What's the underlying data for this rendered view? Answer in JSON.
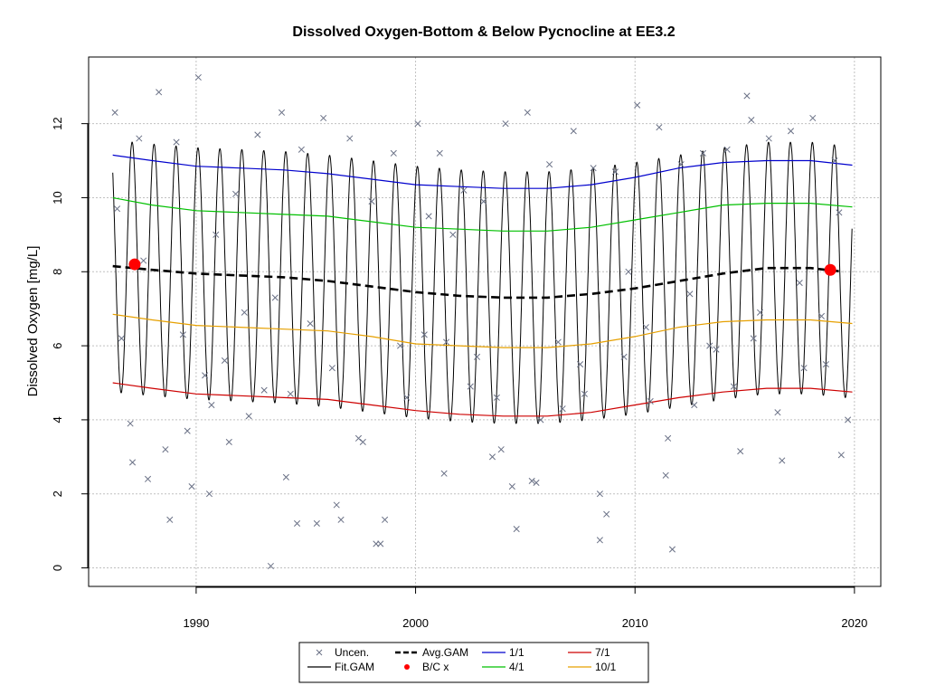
{
  "chart_data": {
    "type": "scatter",
    "title": "Dissolved Oxygen-Bottom & Below Pycnocline at EE3.2",
    "xlabel": "",
    "ylabel": "Dissolved Oxygen [mg/L]",
    "xlim": [
      1985.1,
      2021.2
    ],
    "ylim": [
      -0.5,
      13.8
    ],
    "grid": true,
    "x_ticks": [
      1990,
      2000,
      2010,
      2020
    ],
    "y_ticks": [
      0,
      2,
      4,
      6,
      8,
      10,
      12
    ],
    "legend_position": "bottom-center",
    "legend": [
      "Uncen.",
      "Fit.GAM",
      "Avg.GAM",
      "B/C x",
      "1/1",
      "4/1",
      "7/1",
      "10/1"
    ],
    "colors": {
      "uncen": "#6a7186",
      "fit": "#000000",
      "avg": "#000000",
      "bc": "#ff0000",
      "jan1": "#0000cd",
      "apr1": "#00c000",
      "jul1": "#cd0000",
      "oct1": "#e6a000",
      "grid": "#c0c0c0"
    },
    "fit_gam": {
      "period_years": 1,
      "amplitude_mg_per_L": 3.4,
      "peak_month": 2
    },
    "series": [
      {
        "name": "Avg.GAM",
        "x": [
          1986.2,
          1988,
          1990,
          1992,
          1994,
          1996,
          1998,
          2000,
          2002,
          2004,
          2006,
          2008,
          2010,
          2012,
          2014,
          2016,
          2018,
          2019.5
        ],
        "values": [
          8.15,
          8.05,
          7.95,
          7.9,
          7.85,
          7.75,
          7.6,
          7.45,
          7.35,
          7.3,
          7.3,
          7.4,
          7.55,
          7.75,
          7.95,
          8.1,
          8.1,
          8.0
        ]
      },
      {
        "name": "1/1",
        "x": [
          1986.2,
          1988,
          1990,
          1992,
          1994,
          1996,
          1998,
          2000,
          2002,
          2004,
          2006,
          2008,
          2010,
          2012,
          2014,
          2016,
          2018,
          2019.9
        ],
        "values": [
          11.15,
          11.0,
          10.85,
          10.8,
          10.75,
          10.65,
          10.5,
          10.35,
          10.3,
          10.25,
          10.25,
          10.35,
          10.55,
          10.8,
          10.95,
          11.0,
          11.0,
          10.88
        ]
      },
      {
        "name": "4/1",
        "x": [
          1986.2,
          1988,
          1990,
          1992,
          1994,
          1996,
          1998,
          2000,
          2002,
          2004,
          2006,
          2008,
          2010,
          2012,
          2014,
          2016,
          2018,
          2019.9
        ],
        "values": [
          10.0,
          9.8,
          9.65,
          9.6,
          9.55,
          9.5,
          9.35,
          9.2,
          9.15,
          9.1,
          9.1,
          9.2,
          9.4,
          9.6,
          9.8,
          9.85,
          9.85,
          9.75
        ]
      },
      {
        "name": "7/1",
        "x": [
          1986.2,
          1988,
          1990,
          1992,
          1994,
          1996,
          1998,
          2000,
          2002,
          2004,
          2006,
          2008,
          2010,
          2012,
          2014,
          2016,
          2018,
          2019.9
        ],
        "values": [
          5.0,
          4.85,
          4.7,
          4.65,
          4.6,
          4.55,
          4.4,
          4.25,
          4.15,
          4.1,
          4.1,
          4.2,
          4.4,
          4.6,
          4.75,
          4.85,
          4.85,
          4.75
        ]
      },
      {
        "name": "10/1",
        "x": [
          1986.2,
          1988,
          1990,
          1992,
          1994,
          1996,
          1998,
          2000,
          2002,
          2004,
          2006,
          2008,
          2010,
          2012,
          2014,
          2016,
          2018,
          2019.9
        ],
        "values": [
          6.85,
          6.7,
          6.55,
          6.5,
          6.45,
          6.4,
          6.25,
          6.05,
          6.0,
          5.95,
          5.95,
          6.05,
          6.25,
          6.5,
          6.65,
          6.7,
          6.7,
          6.6
        ]
      },
      {
        "name": "B/C x",
        "x": [
          1987.2,
          2018.9
        ],
        "values": [
          8.2,
          8.05
        ]
      }
    ],
    "uncensored_points": {
      "x": [
        1986.3,
        1986.4,
        1986.6,
        1987.0,
        1987.4,
        1987.6,
        1987.8,
        1988.3,
        1988.6,
        1988.8,
        1989.1,
        1989.4,
        1989.6,
        1989.8,
        1990.1,
        1990.4,
        1990.6,
        1990.9,
        1991.3,
        1991.5,
        1991.8,
        1992.2,
        1992.4,
        1992.8,
        1993.1,
        1993.4,
        1993.6,
        1993.9,
        1994.3,
        1994.6,
        1994.8,
        1995.2,
        1995.5,
        1995.8,
        1996.2,
        1996.4,
        1996.6,
        1997.0,
        1997.4,
        1997.6,
        1998.0,
        1998.4,
        1998.6,
        1999.0,
        1999.3,
        1999.6,
        2000.1,
        2000.4,
        2000.6,
        2001.1,
        2001.4,
        2001.7,
        2002.2,
        2002.5,
        2002.8,
        2003.1,
        2003.5,
        2003.7,
        2004.1,
        2004.4,
        2004.6,
        2005.1,
        2005.5,
        2005.7,
        2006.1,
        2006.5,
        2006.7,
        2007.2,
        2007.5,
        2007.7,
        2008.1,
        2008.4,
        2008.7,
        2009.1,
        2009.5,
        2009.7,
        2010.1,
        2010.5,
        2010.7,
        2011.1,
        2011.4,
        2011.7,
        2012.1,
        2012.5,
        2012.7,
        2013.1,
        2013.4,
        2013.7,
        2014.2,
        2014.5,
        2014.8,
        2015.1,
        2015.4,
        2015.7,
        2016.1,
        2016.5,
        2016.7,
        2017.1,
        2017.5,
        2017.7,
        2018.1,
        2018.5,
        2018.7,
        2019.1,
        2019.4,
        2019.7,
        1987.1,
        1990.7,
        1994.1,
        1998.2,
        2003.9,
        2008.4,
        2011.5,
        2015.3,
        2019.3,
        2001.3,
        2005.3
      ],
      "y": [
        12.3,
        9.7,
        6.2,
        3.9,
        11.6,
        8.3,
        2.4,
        12.85,
        3.2,
        1.3,
        11.5,
        6.3,
        3.7,
        2.2,
        13.25,
        5.2,
        2.0,
        9.0,
        5.6,
        3.4,
        10.1,
        6.9,
        4.1,
        11.7,
        4.8,
        0.05,
        7.3,
        12.3,
        4.7,
        1.2,
        11.3,
        6.6,
        1.2,
        12.15,
        5.4,
        1.7,
        1.3,
        11.6,
        3.5,
        3.4,
        9.9,
        0.65,
        1.3,
        11.2,
        6.0,
        4.6,
        12.0,
        6.3,
        9.5,
        11.2,
        6.1,
        9.0,
        10.2,
        4.9,
        5.7,
        9.9,
        3.0,
        4.6,
        12.0,
        2.2,
        1.05,
        12.3,
        2.3,
        4.0,
        10.9,
        6.1,
        4.3,
        11.8,
        5.5,
        4.7,
        10.8,
        0.75,
        1.45,
        10.7,
        5.7,
        8.0,
        12.5,
        6.5,
        4.5,
        11.9,
        2.5,
        0.5,
        10.9,
        7.4,
        4.4,
        11.2,
        6.0,
        5.9,
        11.3,
        4.9,
        3.15,
        12.75,
        6.2,
        6.9,
        11.6,
        4.2,
        2.9,
        11.8,
        7.7,
        5.4,
        12.15,
        6.8,
        5.5,
        11.0,
        3.05,
        4.0,
        2.85,
        4.4,
        2.45,
        0.65,
        3.2,
        2.0,
        3.5,
        12.1,
        9.6,
        2.55,
        2.35
      ]
    }
  }
}
